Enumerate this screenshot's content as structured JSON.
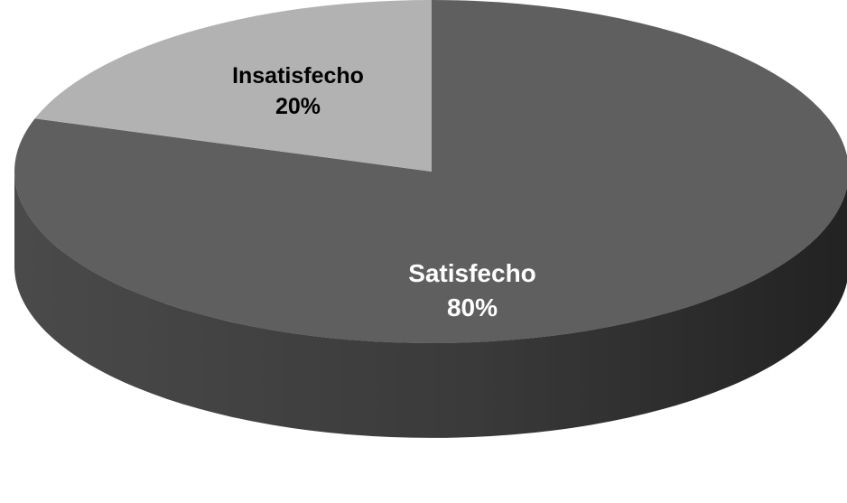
{
  "chart_data": {
    "type": "pie",
    "style": "3d",
    "title": "",
    "categories": [
      "Satisfecho",
      "Insatisfecho"
    ],
    "values": [
      80,
      20
    ],
    "value_labels": [
      "80%",
      "20%"
    ],
    "colors": {
      "Satisfecho": "#5f5f5f",
      "Insatisfecho": "#b2b2b2",
      "side_dark": "#2e2e2e",
      "side_light": "#474747",
      "label_on_dark": "#ffffff",
      "label_on_light": "#000000"
    },
    "legend": "none",
    "data_labels": "inside"
  }
}
